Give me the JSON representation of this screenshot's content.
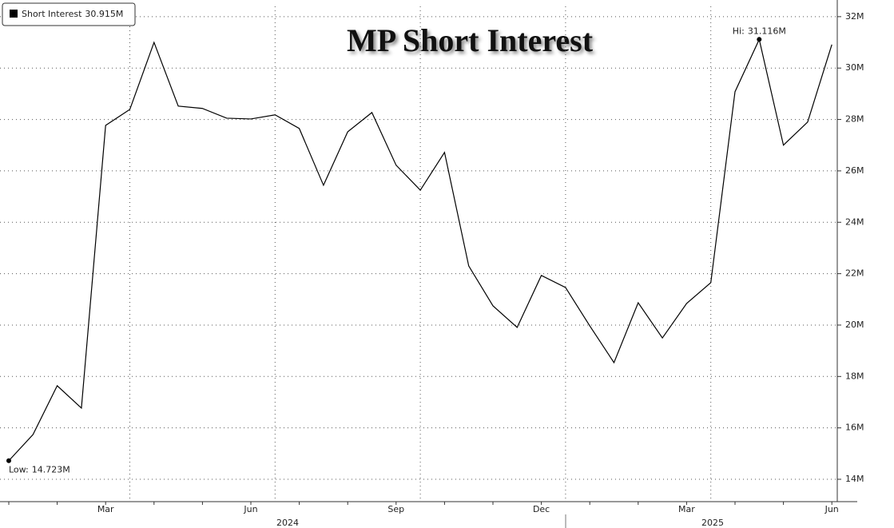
{
  "chart_data": {
    "type": "line",
    "title": "MP Short Interest",
    "categories": [
      null,
      null,
      null,
      null,
      "Mar",
      null,
      null,
      null,
      null,
      null,
      "Jun",
      null,
      null,
      null,
      null,
      null,
      "Sep",
      null,
      null,
      null,
      null,
      null,
      "Dec",
      null,
      null,
      null,
      null,
      null,
      "Mar",
      null,
      null,
      null,
      null,
      null,
      "Jun"
    ],
    "years": [
      "2024",
      "2025"
    ],
    "series": [
      {
        "name": "Short Interest",
        "color": "#000000",
        "values": [
          14.723,
          15.74,
          17.64,
          16.77,
          27.77,
          28.39,
          31.0,
          28.52,
          28.43,
          28.05,
          28.02,
          28.18,
          27.65,
          25.44,
          27.52,
          28.27,
          26.22,
          25.25,
          26.72,
          22.3,
          20.75,
          19.91,
          21.93,
          21.46,
          19.97,
          18.54,
          20.87,
          19.5,
          20.84,
          21.65,
          29.08,
          31.116,
          27.0,
          27.9,
          30.915
        ],
        "value_labels": [
          "14.723M",
          null,
          null,
          null,
          null,
          null,
          null,
          null,
          null,
          null,
          null,
          null,
          null,
          null,
          null,
          null,
          null,
          null,
          null,
          null,
          null,
          null,
          null,
          null,
          null,
          null,
          null,
          null,
          null,
          null,
          null,
          "31.116M",
          null,
          null,
          "30.915M"
        ]
      }
    ],
    "annotations": {
      "low": "Low:",
      "high": "Hi:"
    },
    "ylim": [
      13.13,
      32.4
    ],
    "yticks": [
      {
        "value": 14,
        "label": "14M"
      },
      {
        "value": 16,
        "label": "16M"
      },
      {
        "value": 18,
        "label": "18M"
      },
      {
        "value": 20,
        "label": "20M"
      },
      {
        "value": 22,
        "label": "22M"
      },
      {
        "value": 24,
        "label": "24M"
      },
      {
        "value": 26,
        "label": "26M"
      },
      {
        "value": 28,
        "label": "28M"
      },
      {
        "value": 30,
        "label": "30M"
      },
      {
        "value": 32,
        "label": "32M"
      }
    ],
    "grid": true
  }
}
